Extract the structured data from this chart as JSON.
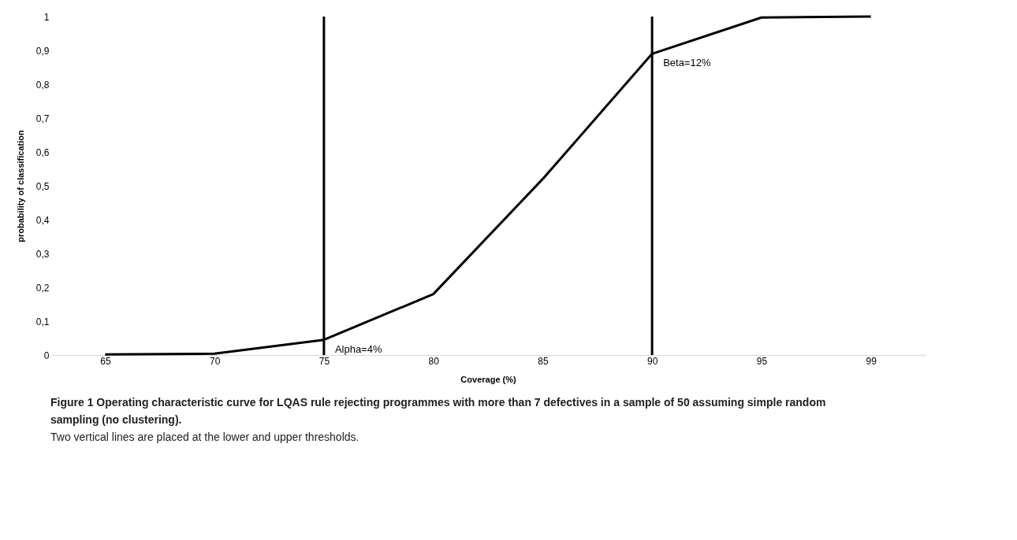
{
  "chart_data": {
    "type": "line",
    "xlabel": "Coverage (%)",
    "ylabel": "probability of classification",
    "categories": [
      "65",
      "70",
      "75",
      "80",
      "85",
      "90",
      "95",
      "99"
    ],
    "series": [
      {
        "color": "#000000",
        "values": [
          0.002,
          0.004,
          0.045,
          0.18,
          0.52,
          0.89,
          0.997,
          1.0
        ]
      }
    ],
    "ylim": [
      0,
      1
    ],
    "yticks": [
      0,
      {
        "value": 0.1,
        "label": "0,1"
      },
      {
        "value": 0.2,
        "label": "0,2"
      },
      {
        "value": 0.3,
        "label": "0,3"
      },
      {
        "value": 0.4,
        "label": "0,4"
      },
      {
        "value": 0.5,
        "label": "0,5"
      },
      {
        "value": 0.6,
        "label": "0,6"
      },
      {
        "value": 0.7,
        "label": "0,7"
      },
      {
        "value": 0.8,
        "label": "0,8"
      },
      {
        "value": 0.9,
        "label": "0,9"
      },
      1
    ],
    "ref_lines": [
      {
        "axis": "x",
        "value": "75",
        "color": "#000000"
      },
      {
        "axis": "x",
        "value": "90",
        "color": "#000000"
      }
    ],
    "annotations": [
      {
        "text": "Alpha=4%",
        "x": "75",
        "y": 0.045
      },
      {
        "text": "Beta=12%",
        "x": "90",
        "y": 0.89
      },
      "Figure 1 Operating characteristic curve for LQAS rule rejecting programmes with more than 7 defectives in a sample of 50 assuming simple random sampling (no clustering).",
      "Two vertical lines are placed at the lower and upper thresholds."
    ],
    "grid": false,
    "marker": "none",
    "line_style": "solid"
  }
}
